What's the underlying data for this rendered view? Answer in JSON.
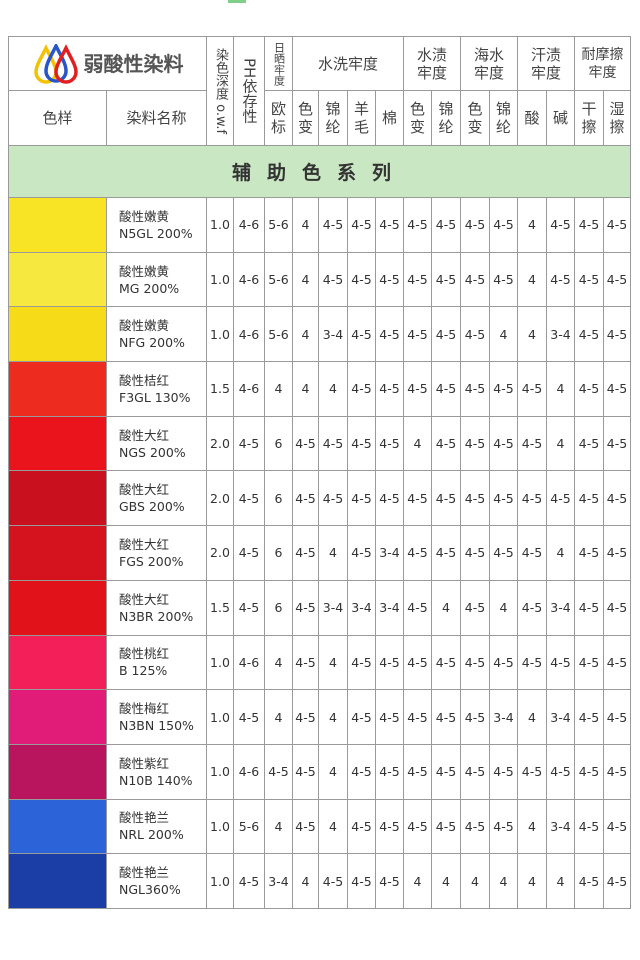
{
  "brand": {
    "title": "弱酸性染料",
    "logo_colors": [
      "#f2c200",
      "#2a55c8",
      "#e02020"
    ]
  },
  "headers": {
    "swatch": "色样",
    "dye_name": "染料名称",
    "depth": "染色深度 o.w.f",
    "ph": "PH依存性",
    "light": "日晒牢度",
    "light_sub": "欧标",
    "wash": "水洗牢度",
    "wash_sub": [
      "色变",
      "锦纶",
      "羊毛",
      "棉"
    ],
    "water": "水渍牢度",
    "water_sub": [
      "色变",
      "锦纶"
    ],
    "sea": "海水牢度",
    "sea_sub": [
      "色变",
      "锦纶"
    ],
    "sweat": "汗渍牢度",
    "sweat_sub": [
      "酸",
      "碱"
    ],
    "rub": "耐摩擦牢度",
    "rub_sub": [
      "干擦",
      "湿擦"
    ]
  },
  "section": "辅助色系列",
  "rows": [
    {
      "color": "#f8e324",
      "name": "酸性嫩黄",
      "code": "N5GL 200%",
      "v": [
        "1.0",
        "4-6",
        "5-6",
        "4",
        "4-5",
        "4-5",
        "4-5",
        "4-5",
        "4-5",
        "4-5",
        "4-5",
        "4",
        "4-5",
        "4-5",
        "4-5"
      ]
    },
    {
      "color": "#f6e83e",
      "name": "酸性嫩黄",
      "code": "MG 200%",
      "v": [
        "1.0",
        "4-6",
        "5-6",
        "4",
        "4-5",
        "4-5",
        "4-5",
        "4-5",
        "4-5",
        "4-5",
        "4-5",
        "4",
        "4-5",
        "4-5",
        "4-5"
      ]
    },
    {
      "color": "#f6dc18",
      "name": "酸性嫩黄",
      "code": "NFG 200%",
      "v": [
        "1.0",
        "4-6",
        "5-6",
        "4",
        "3-4",
        "4-5",
        "4-5",
        "4-5",
        "4-5",
        "4-5",
        "4",
        "4",
        "3-4",
        "4-5",
        "4-5"
      ]
    },
    {
      "color": "#ee2b1f",
      "name": "酸性桔红",
      "code": "F3GL 130%",
      "v": [
        "1.5",
        "4-6",
        "4",
        "4",
        "4",
        "4-5",
        "4-5",
        "4-5",
        "4-5",
        "4-5",
        "4-5",
        "4-5",
        "4",
        "4-5",
        "4-5"
      ]
    },
    {
      "color": "#e9141c",
      "name": "酸性大红",
      "code": "NGS 200%",
      "v": [
        "2.0",
        "4-5",
        "6",
        "4-5",
        "4-5",
        "4-5",
        "4-5",
        "4",
        "4-5",
        "4-5",
        "4-5",
        "4-5",
        "4",
        "4-5",
        "4-5"
      ]
    },
    {
      "color": "#c9101f",
      "name": "酸性大红",
      "code": "GBS 200%",
      "v": [
        "2.0",
        "4-5",
        "6",
        "4-5",
        "4-5",
        "4-5",
        "4-5",
        "4-5",
        "4-5",
        "4-5",
        "4-5",
        "4-5",
        "4-5",
        "4-5",
        "4-5"
      ]
    },
    {
      "color": "#d5131f",
      "name": "酸性大红",
      "code": "FGS 200%",
      "v": [
        "2.0",
        "4-5",
        "6",
        "4-5",
        "4",
        "4-5",
        "3-4",
        "4-5",
        "4-5",
        "4-5",
        "4-5",
        "4-5",
        "4",
        "4-5",
        "4-5"
      ]
    },
    {
      "color": "#e2121a",
      "name": "酸性大红",
      "code": "N3BR 200%",
      "v": [
        "1.5",
        "4-5",
        "6",
        "4-5",
        "3-4",
        "3-4",
        "3-4",
        "4-5",
        "4",
        "4-5",
        "4",
        "4-5",
        "3-4",
        "4-5",
        "4-5"
      ]
    },
    {
      "color": "#f21f58",
      "name": "酸性桃红",
      "code": "B 125%",
      "v": [
        "1.0",
        "4-6",
        "4",
        "4-5",
        "4",
        "4-5",
        "4-5",
        "4-5",
        "4-5",
        "4-5",
        "4-5",
        "4-5",
        "4-5",
        "4-5",
        "4-5"
      ]
    },
    {
      "color": "#e01c78",
      "name": "酸性梅红",
      "code": "N3BN 150%",
      "v": [
        "1.0",
        "4-5",
        "4",
        "4-5",
        "4",
        "4-5",
        "4-5",
        "4-5",
        "4-5",
        "4-5",
        "3-4",
        "4",
        "3-4",
        "4-5",
        "4-5"
      ]
    },
    {
      "color": "#b8155e",
      "name": "酸性紫红",
      "code": "N10B 140%",
      "v": [
        "1.0",
        "4-6",
        "4-5",
        "4-5",
        "4",
        "4-5",
        "4-5",
        "4-5",
        "4-5",
        "4-5",
        "4-5",
        "4-5",
        "4-5",
        "4-5",
        "4-5"
      ]
    },
    {
      "color": "#2c63d9",
      "name": "酸性艳兰",
      "code": "NRL 200%",
      "v": [
        "1.0",
        "5-6",
        "4",
        "4-5",
        "4",
        "4-5",
        "4-5",
        "4-5",
        "4-5",
        "4-5",
        "4-5",
        "4",
        "3-4",
        "4-5",
        "4-5"
      ]
    },
    {
      "color": "#1a3ea6",
      "name": "酸性艳兰",
      "code": "NGL360%",
      "v": [
        "1.0",
        "4-5",
        "3-4",
        "4",
        "4-5",
        "4-5",
        "4-5",
        "4",
        "4",
        "4",
        "4",
        "4",
        "4",
        "4-5",
        "4-5"
      ]
    }
  ]
}
